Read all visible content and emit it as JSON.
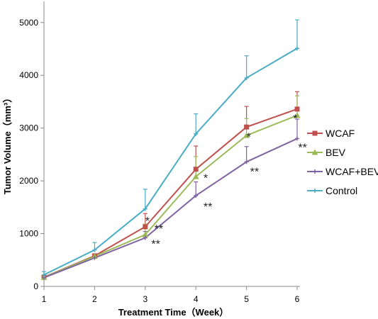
{
  "chart_data": {
    "type": "line",
    "xlabel": "Treatment Time（Week）",
    "ylabel": "Tumor Volume（mm³）",
    "x": [
      1,
      2,
      3,
      4,
      5,
      6
    ],
    "xticks": [
      "1",
      "2",
      "3",
      "4",
      "5",
      "6"
    ],
    "yticks": [
      "0",
      "1000",
      "2000",
      "3000",
      "4000",
      "5000"
    ],
    "xlim": [
      1,
      6
    ],
    "ylim": [
      0,
      5400
    ],
    "grid": false,
    "legend_position": "right",
    "series": [
      {
        "name": "WCAF",
        "color": "#c0504d",
        "marker": "square",
        "values": [
          175,
          580,
          1130,
          2220,
          3020,
          3360
        ],
        "errors": [
          0,
          20,
          250,
          440,
          390,
          330
        ]
      },
      {
        "name": "BEV",
        "color": "#9bbb59",
        "marker": "triangle",
        "values": [
          170,
          570,
          980,
          2080,
          2860,
          3240
        ],
        "errors": [
          0,
          20,
          200,
          380,
          320,
          370
        ]
      },
      {
        "name": "WCAF+BEV",
        "color": "#8064a2",
        "marker": "cross",
        "values": [
          165,
          540,
          920,
          1720,
          2360,
          2800
        ],
        "errors": [
          0,
          20,
          120,
          260,
          290,
          370
        ]
      },
      {
        "name": "Control",
        "color": "#4bacc6",
        "marker": "cross",
        "values": [
          220,
          690,
          1470,
          2890,
          3950,
          4510
        ],
        "errors": [
          60,
          140,
          370,
          380,
          420,
          540
        ]
      }
    ],
    "annotations": [
      {
        "text": "*",
        "x": 3.0,
        "y": 1170
      },
      {
        "text": "**",
        "x": 3.18,
        "y": 1020
      },
      {
        "text": "**",
        "x": 3.12,
        "y": 730
      },
      {
        "text": "*",
        "x": 4.15,
        "y": 1980
      },
      {
        "text": "**",
        "x": 4.15,
        "y": 1440
      },
      {
        "text": "*",
        "x": 5.0,
        "y": 2760
      },
      {
        "text": "**",
        "x": 5.07,
        "y": 2100
      },
      {
        "text": "*",
        "x": 5.92,
        "y": 3110
      },
      {
        "text": "**",
        "x": 6.02,
        "y": 2560
      }
    ]
  }
}
